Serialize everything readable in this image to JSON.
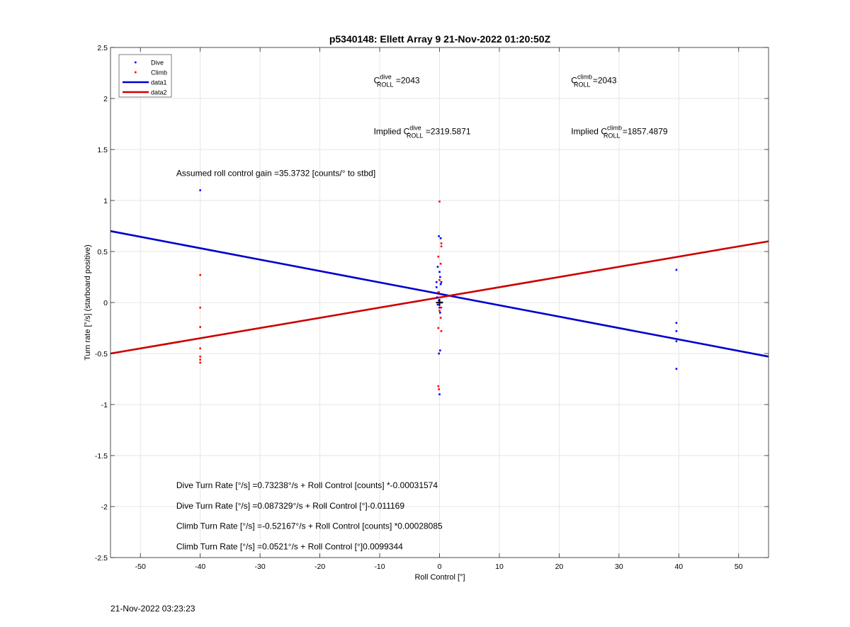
{
  "footer_timestamp": "21-Nov-2022 03:23:23",
  "chart_data": {
    "type": "scatter",
    "title": "p5340148: Ellett Array 9 21-Nov-2022 01:20:50Z",
    "xlabel": "Roll Control [°]",
    "ylabel": "Turn rate [°/s] (starboard positive)",
    "xlim": [
      -55,
      55
    ],
    "ylim": [
      -2.5,
      2.5
    ],
    "x_ticks": [
      -50,
      -40,
      -30,
      -20,
      -10,
      0,
      10,
      20,
      30,
      40,
      50
    ],
    "y_ticks": [
      -2.5,
      -2,
      -1.5,
      -1,
      -0.5,
      0,
      0.5,
      1,
      1.5,
      2,
      2.5
    ],
    "grid": true,
    "legend_position": "top-left",
    "colors": {
      "dive": "#0000ff",
      "climb": "#ff0000",
      "data1": "#0000cc",
      "data2": "#cc0000",
      "marker": "#000000"
    },
    "legend": [
      {
        "label": "Dive",
        "kind": "dot",
        "color": "#0000ff"
      },
      {
        "label": "Climb",
        "kind": "dot",
        "color": "#ff0000"
      },
      {
        "label": "data1",
        "kind": "line",
        "color": "#0000cc"
      },
      {
        "label": "data2",
        "kind": "line",
        "color": "#cc0000"
      }
    ],
    "series": [
      {
        "name": "Dive",
        "kind": "scatter",
        "color": "#0000ff",
        "points": [
          [
            -40.0,
            1.1
          ],
          [
            -0.5,
            0.2
          ],
          [
            -0.5,
            0.15
          ],
          [
            -0.4,
            0.05
          ],
          [
            -0.3,
            0.35
          ],
          [
            -0.3,
            -0.02
          ],
          [
            -0.2,
            0.1
          ],
          [
            -0.1,
            0.65
          ],
          [
            -0.1,
            0.02
          ],
          [
            0.0,
            0.3
          ],
          [
            0.0,
            -0.05
          ],
          [
            0.1,
            0.25
          ],
          [
            0.1,
            -0.1
          ],
          [
            0.2,
            0.63
          ],
          [
            0.2,
            0.18
          ],
          [
            0.3,
            0.2
          ],
          [
            0.3,
            0.0
          ],
          [
            0.1,
            -0.47
          ],
          [
            -0.1,
            -0.5
          ],
          [
            0.0,
            -0.9
          ],
          [
            0.4,
            0.08
          ],
          [
            39.6,
            0.32
          ],
          [
            39.6,
            -0.2
          ],
          [
            39.6,
            -0.28
          ],
          [
            39.6,
            -0.38
          ],
          [
            39.6,
            -0.65
          ]
        ]
      },
      {
        "name": "Climb",
        "kind": "scatter",
        "color": "#ff0000",
        "points": [
          [
            -40.0,
            0.27
          ],
          [
            -40.0,
            -0.05
          ],
          [
            -40.0,
            -0.24
          ],
          [
            -40.0,
            -0.45
          ],
          [
            -40.0,
            -0.53
          ],
          [
            -40.0,
            -0.56
          ],
          [
            -40.0,
            -0.59
          ],
          [
            -0.2,
            0.45
          ],
          [
            0.0,
            0.99
          ],
          [
            0.3,
            0.58
          ],
          [
            0.3,
            0.55
          ],
          [
            0.2,
            0.38
          ],
          [
            0.0,
            0.22
          ],
          [
            -0.1,
            0.1
          ],
          [
            0.1,
            0.05
          ],
          [
            0.3,
            -0.05
          ],
          [
            0.0,
            -0.08
          ],
          [
            0.2,
            -0.15
          ],
          [
            -0.2,
            -0.25
          ],
          [
            0.3,
            -0.28
          ],
          [
            -0.2,
            -0.82
          ],
          [
            -0.1,
            -0.85
          ]
        ]
      },
      {
        "name": "data1",
        "kind": "line",
        "color": "#0000cc",
        "x": [
          -55,
          55
        ],
        "y": [
          0.7,
          -0.53
        ]
      },
      {
        "name": "data2",
        "kind": "line",
        "color": "#cc0000",
        "x": [
          -55,
          55
        ],
        "y": [
          -0.5,
          0.6
        ]
      }
    ],
    "marker_point": [
      0,
      0
    ],
    "annotations": [
      {
        "pre": "C",
        "sup": "dive",
        "sub": "ROLL",
        "post": " =2043",
        "x": -11,
        "y": 2.15
      },
      {
        "pre": "C",
        "sup": "climb",
        "sub": "ROLL",
        "post": " =2043",
        "x": 22,
        "y": 2.15
      },
      {
        "pre": "Implied C",
        "sup": "dive",
        "sub": "ROLL",
        "post": " =2319.5871",
        "x": -11,
        "y": 1.65
      },
      {
        "pre": "Implied C",
        "sup": "climb",
        "sub": "ROLL",
        "post": " =1857.4879",
        "x": 22,
        "y": 1.65
      },
      {
        "pre": "Assumed roll control gain =35.3732 [counts/° to stbd]",
        "sup": "",
        "sub": "",
        "post": "",
        "x": -44,
        "y": 1.24
      },
      {
        "pre": "Dive Turn Rate [°/s] =0.73238°/s + Roll Control [counts] *-0.00031574",
        "sup": "",
        "sub": "",
        "post": "",
        "x": -44,
        "y": -1.82
      },
      {
        "pre": "Dive Turn Rate [°/s] =0.087329°/s + Roll Control [°]-0.011169",
        "sup": "",
        "sub": "",
        "post": "",
        "x": -44,
        "y": -2.02
      },
      {
        "pre": "Climb Turn Rate [°/s] =-0.52167°/s + Roll Control [counts] *0.00028085",
        "sup": "",
        "sub": "",
        "post": "",
        "x": -44,
        "y": -2.22
      },
      {
        "pre": "Climb Turn Rate [°/s] =0.0521°/s + Roll Control [°]0.0099344",
        "sup": "",
        "sub": "",
        "post": "",
        "x": -44,
        "y": -2.42
      }
    ]
  }
}
